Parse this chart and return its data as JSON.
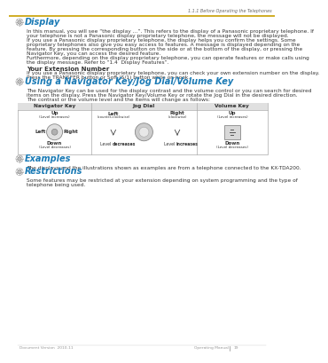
{
  "bg_color": "#ffffff",
  "top_line_color": "#c8a000",
  "header_text": "1.1.1 Before Operating the Telephones",
  "header_color": "#666666",
  "section1_title": "Display",
  "section1_title_color": "#1a7ab5",
  "section1_body1": "In this manual, you will see “the display …”. This refers to the display of a Panasonic proprietary telephone. If",
  "section1_body2": "your telephone is not a Panasonic display proprietary telephone, the message will not be displayed.",
  "section1_body3": "If you use a Panasonic display proprietary telephone, the display helps you confirm the settings. Some",
  "section1_body4": "proprietary telephones also give you easy access to features. A message is displayed depending on the",
  "section1_body5": "feature. By pressing the corresponding button on the side or at the bottom of the display, or pressing the",
  "section1_body6": "Navigator Key, you can access the desired feature.",
  "section1_body7": "Furthermore, depending on the display proprietary telephone, you can operate features or make calls using",
  "section1_body8": "the display message. Refer to “1.4  Display Features”.",
  "subsection_title": "Your Extension Number",
  "subsection_body1": "If you use a Panasonic display proprietary telephone, you can check your own extension number on the display.",
  "subsection_body2": "Press the TRANSFER button or Soft (S/1) button while on-hook.",
  "section2_title": "Using a Navigator Key/Jog Dial/Volume Key",
  "section2_title_color": "#1a7ab5",
  "section2_body1": "The Navigator Key can be used for the display contrast and the volume control or you can search for desired",
  "section2_body2": "items on the display. Press the Navigator Key/Volume Key or rotate the Jog Dial in the desired direction.",
  "section2_body3": "The contrast or the volume level and the items will change as follows:",
  "table_header_bg": "#e0e0e0",
  "table_border_color": "#aaaaaa",
  "col_hdr1": "Navigator Key",
  "col_hdr2": "Jog Dial",
  "col_hdr3": "Volume Key",
  "nav_up_bold": "Up",
  "nav_up_sub": "(Level increases)",
  "nav_down_bold": "Down",
  "nav_down_sub": "(Level decreases)",
  "nav_left": "Left",
  "nav_right": "Right",
  "jog_left_bold": "Left",
  "jog_left_sub": "(counter-clockwise)",
  "jog_right_bold": "Right",
  "jog_right_sub": "(clockwise)",
  "jog_level_dec": "decreases",
  "jog_level_inc": "increases",
  "vol_up_bold": "Up",
  "vol_up_sub": "(Level increases)",
  "vol_down_bold": "Down",
  "vol_down_sub": "(Level decreases)",
  "section3_title": "Examples",
  "section3_title_color": "#1a7ab5",
  "section3_body": "The displays and the illustrations shown as examples are from a telephone connected to the KX-TDA200.",
  "section4_title": "Restrictions",
  "section4_title_color": "#1a7ab5",
  "section4_body1": "Some features may be restricted at your extension depending on system programming and the type of",
  "section4_body2": "telephone being used.",
  "footer_left": "Document Version  2010-11",
  "footer_right": "Operating Manual",
  "footer_page": "19",
  "footer_color": "#999999",
  "text_color": "#333333",
  "bold_color": "#000000",
  "body_fontsize": 4.2,
  "title_fontsize": 7.0,
  "subsection_fontsize": 5.0,
  "tbl_fontsize": 4.5
}
